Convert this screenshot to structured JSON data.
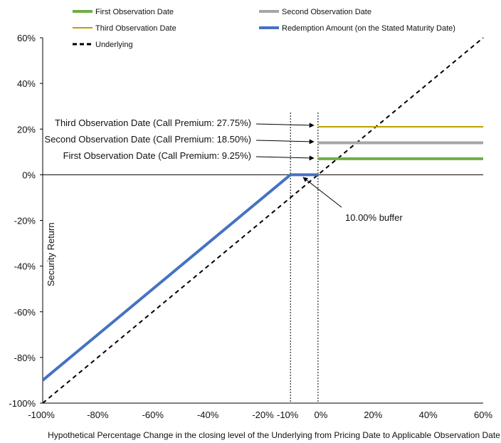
{
  "chart_data": {
    "type": "line",
    "xlabel": "Hypothetical Percentage Change in the closing level of the Underlying from Pricing Date to Applicable Observation Date",
    "ylabel": "Security Return",
    "xlim": [
      -100,
      60
    ],
    "ylim": [
      -100,
      60
    ],
    "xticks": [
      "-100%",
      "-80%",
      "-60%",
      "-40%",
      "-20%",
      "-10%",
      "0%",
      "20%",
      "40%",
      "60%"
    ],
    "xtick_values": [
      -100,
      -80,
      -60,
      -40,
      -20,
      -10,
      0,
      20,
      40,
      60
    ],
    "yticks": [
      "60%",
      "40%",
      "20%",
      "0%",
      "-20%",
      "-40%",
      "-60%",
      "-80%",
      "-100%"
    ],
    "ytick_values": [
      60,
      40,
      20,
      0,
      -20,
      -40,
      -60,
      -80,
      -100
    ],
    "grid": false,
    "legend_position": "top",
    "series": [
      {
        "name": "First Observation Date",
        "color": "#70ad47",
        "x": [
          0,
          60
        ],
        "y": [
          7,
          7
        ]
      },
      {
        "name": "Second Observation Date",
        "color": "#a6a6a6",
        "x": [
          0,
          60
        ],
        "y": [
          14,
          14
        ]
      },
      {
        "name": "Third Observation Date",
        "color": "#bf9f00",
        "x": [
          0,
          60
        ],
        "y": [
          21,
          21
        ]
      },
      {
        "name": "Redemption Amount (on the Stated Maturity Date)",
        "color": "#4472c4",
        "x": [
          -100,
          -10,
          0
        ],
        "y": [
          -90,
          0,
          0
        ]
      },
      {
        "name": "Underlying",
        "color": "#000000",
        "x": [
          -100,
          60
        ],
        "y": [
          -100,
          60
        ]
      }
    ],
    "annotations": [
      {
        "text": "Third Observation Date (Call Premium: 27.75%)",
        "x": 0,
        "y": 21
      },
      {
        "text": "Second Observation Date (Call Premium: 18.50%)",
        "x": 0,
        "y": 14
      },
      {
        "text": "First Observation Date (Call Premium: 9.25%)",
        "x": 0,
        "y": 7
      },
      {
        "text": "10.00% buffer",
        "x": -5,
        "y": 0
      }
    ],
    "reference_lines": [
      {
        "axis": "x",
        "value": -10
      },
      {
        "axis": "x",
        "value": 0
      }
    ]
  }
}
